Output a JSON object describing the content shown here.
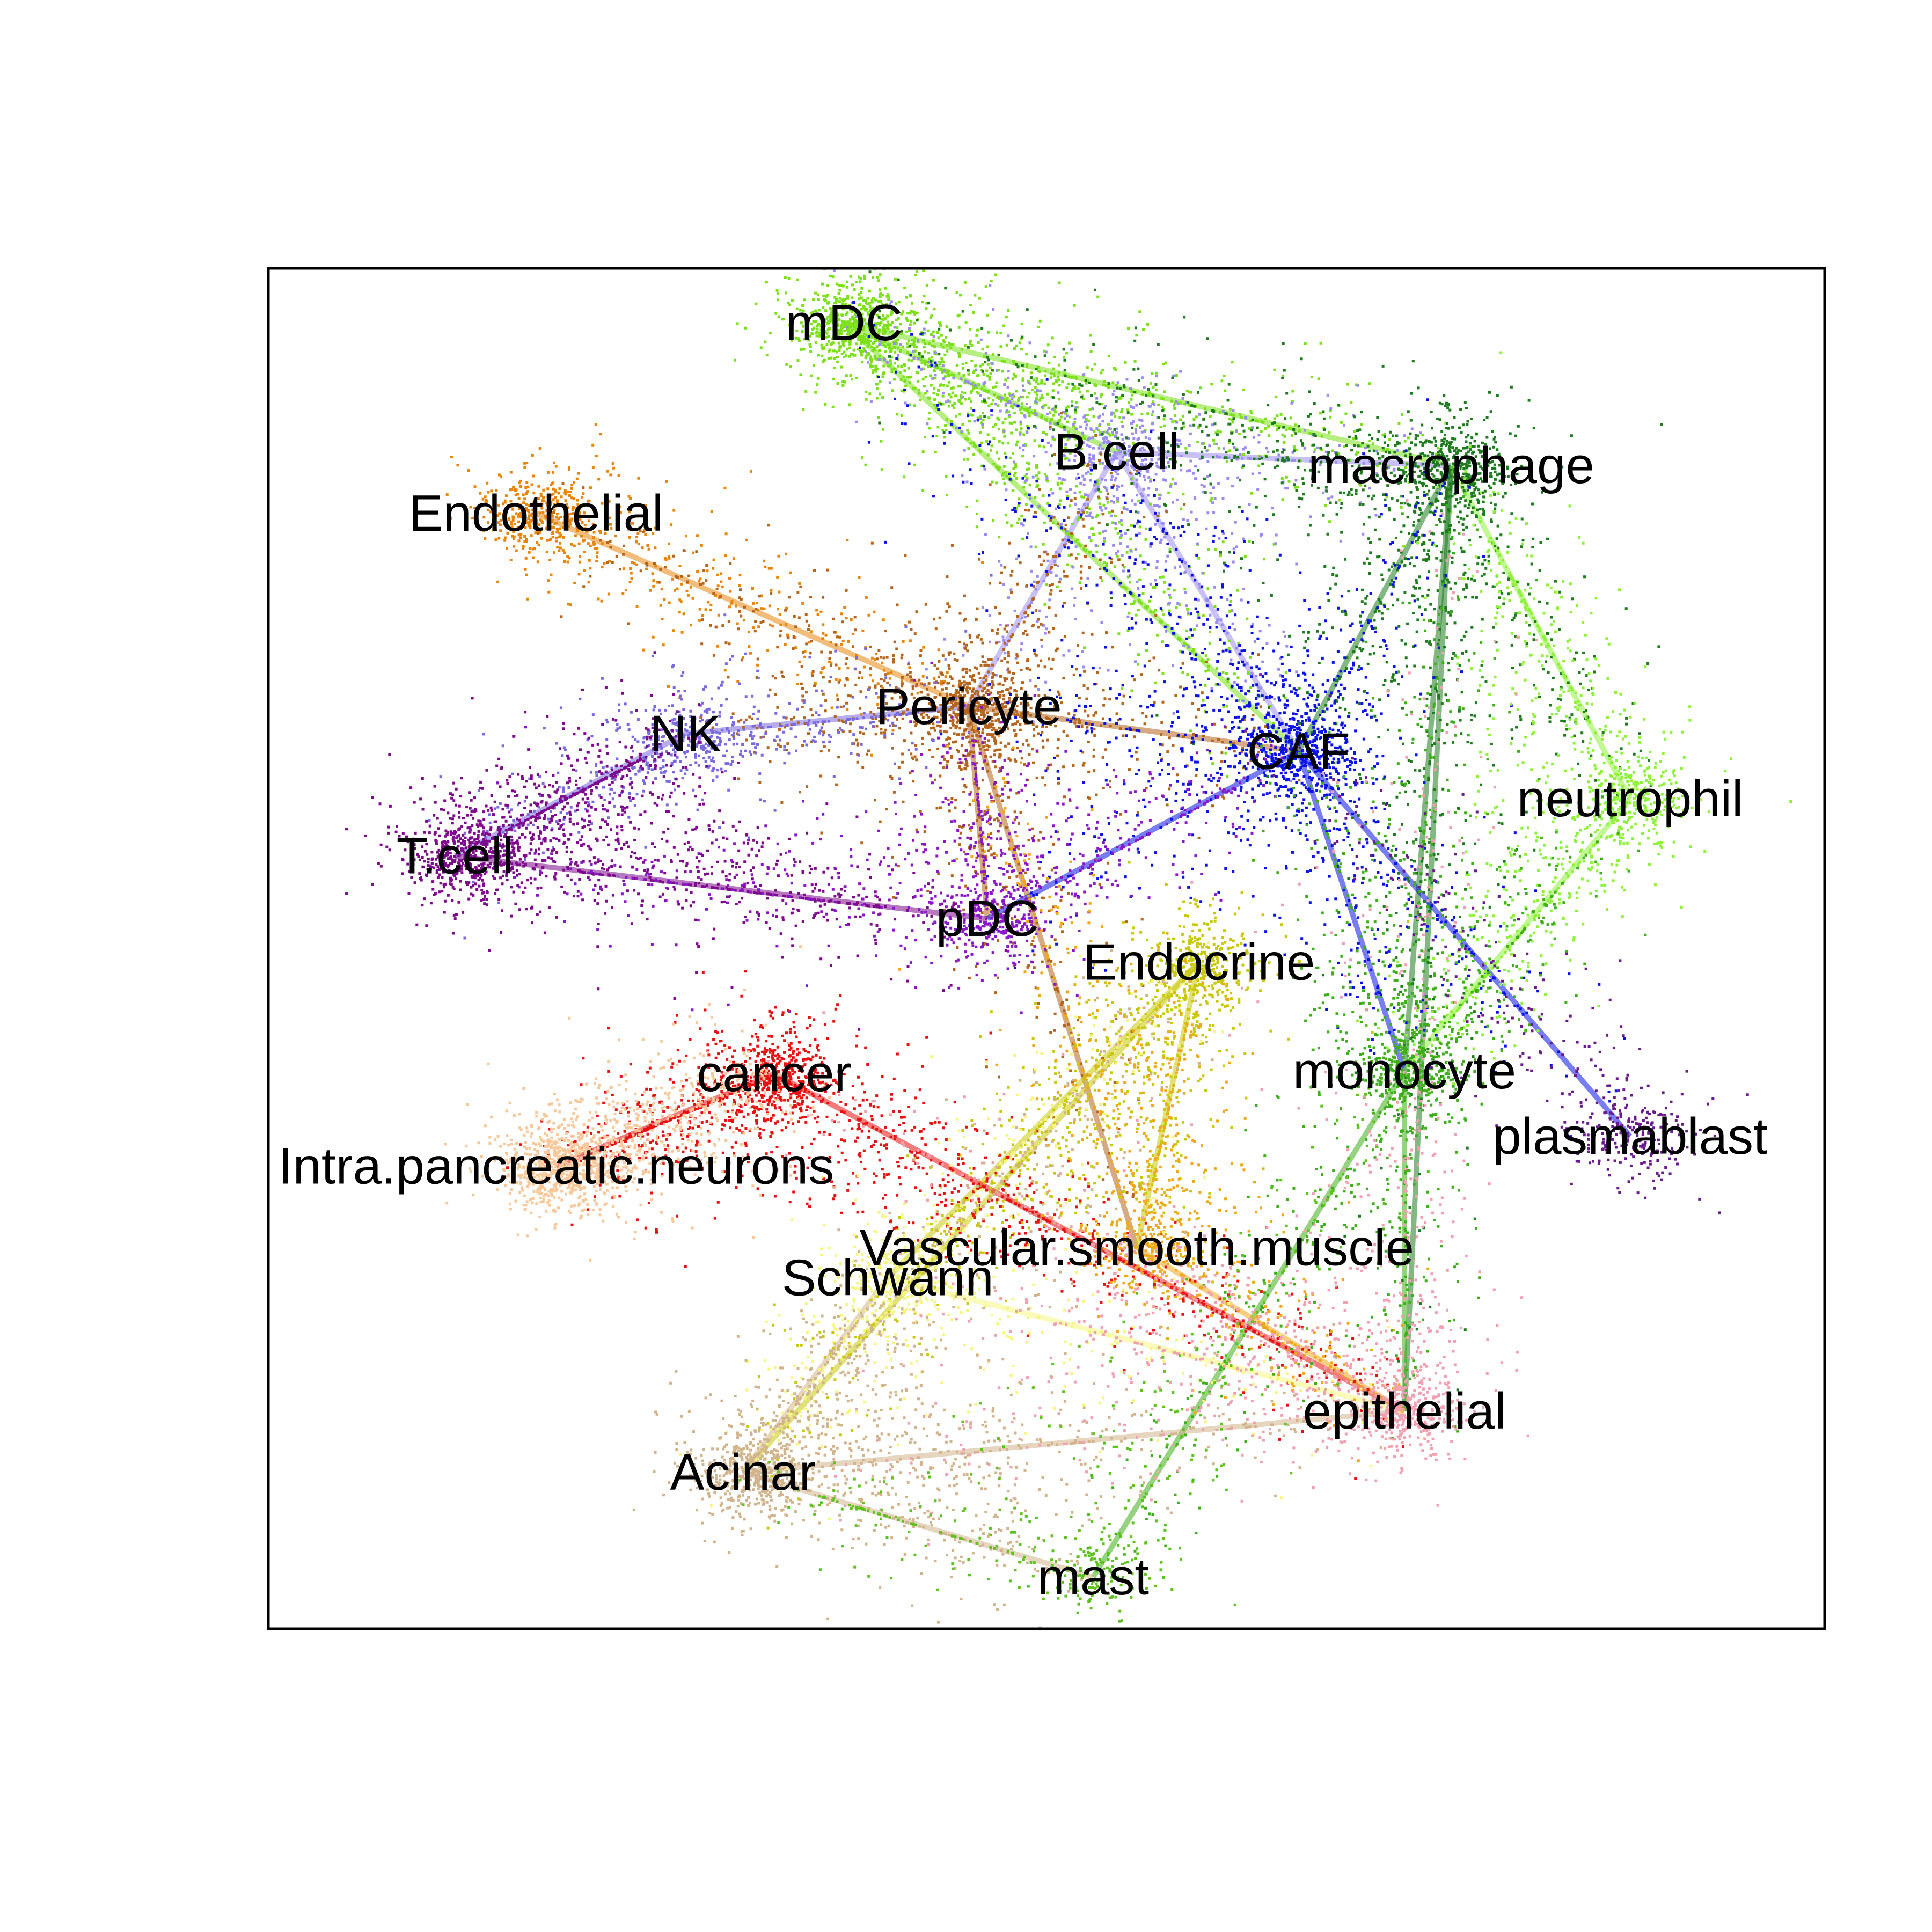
{
  "chart_data": {
    "type": "scatter",
    "title": "",
    "xlabel": "",
    "ylabel": "",
    "xlim": [
      0,
      1000
    ],
    "ylim": [
      0,
      1000
    ],
    "grid": false,
    "legend": "none",
    "clusters": [
      {
        "name": "mDC",
        "x": 370,
        "y": 960,
        "color": "#7CE01A",
        "n": 2600
      },
      {
        "name": "B.cell",
        "x": 545,
        "y": 865,
        "color": "#9A8CF0",
        "n": 900
      },
      {
        "name": "macrophage",
        "x": 760,
        "y": 855,
        "color": "#1E7B1E",
        "n": 2600
      },
      {
        "name": "Endothelial",
        "x": 172,
        "y": 820,
        "color": "#E8860C",
        "n": 700
      },
      {
        "name": "Pericyte",
        "x": 450,
        "y": 678,
        "color": "#B5651D",
        "n": 2200
      },
      {
        "name": "NK",
        "x": 268,
        "y": 658,
        "color": "#7A6AE0",
        "n": 700
      },
      {
        "name": "CAF",
        "x": 662,
        "y": 645,
        "color": "#0A12E8",
        "n": 2000
      },
      {
        "name": "T.cell",
        "x": 120,
        "y": 568,
        "color": "#7E0A8C",
        "n": 2400
      },
      {
        "name": "neutrophil",
        "x": 875,
        "y": 610,
        "color": "#8FF23A",
        "n": 1000
      },
      {
        "name": "pDC",
        "x": 462,
        "y": 522,
        "color": "#8A18C8",
        "n": 1000
      },
      {
        "name": "Endocrine",
        "x": 598,
        "y": 490,
        "color": "#C9C80A",
        "n": 1100
      },
      {
        "name": "monocyte",
        "x": 730,
        "y": 410,
        "color": "#3EAE1A",
        "n": 1300
      },
      {
        "name": "cancer",
        "x": 325,
        "y": 408,
        "color": "#E81010",
        "n": 1600
      },
      {
        "name": "plasmablast",
        "x": 875,
        "y": 362,
        "color": "#6A1A8C",
        "n": 400
      },
      {
        "name": "Intra.pancreatic.neurons",
        "x": 185,
        "y": 340,
        "color": "#F7C89A",
        "n": 1200
      },
      {
        "name": "Vascular.smooth.muscle",
        "x": 558,
        "y": 280,
        "color": "#F0A818",
        "n": 900
      },
      {
        "name": "Schwann",
        "x": 398,
        "y": 258,
        "color": "#F5F580",
        "n": 800
      },
      {
        "name": "epithelial",
        "x": 730,
        "y": 160,
        "color": "#F0A0B0",
        "n": 1400
      },
      {
        "name": "Acinar",
        "x": 305,
        "y": 115,
        "color": "#D2B48C",
        "n": 2400
      },
      {
        "name": "mast",
        "x": 530,
        "y": 38,
        "color": "#5CC21C",
        "n": 500
      }
    ],
    "edges": [
      [
        "mDC",
        "macrophage"
      ],
      [
        "mDC",
        "CAF"
      ],
      [
        "mDC",
        "B.cell"
      ],
      [
        "B.cell",
        "macrophage"
      ],
      [
        "B.cell",
        "CAF"
      ],
      [
        "B.cell",
        "Pericyte"
      ],
      [
        "macrophage",
        "CAF"
      ],
      [
        "macrophage",
        "monocyte"
      ],
      [
        "macrophage",
        "epithelial"
      ],
      [
        "Endothelial",
        "Pericyte"
      ],
      [
        "Pericyte",
        "CAF"
      ],
      [
        "Pericyte",
        "pDC"
      ],
      [
        "Pericyte",
        "Vascular.smooth.muscle"
      ],
      [
        "NK",
        "T.cell"
      ],
      [
        "NK",
        "Pericyte"
      ],
      [
        "CAF",
        "pDC"
      ],
      [
        "CAF",
        "plasmablast"
      ],
      [
        "CAF",
        "monocyte"
      ],
      [
        "neutrophil",
        "monocyte"
      ],
      [
        "neutrophil",
        "macrophage"
      ],
      [
        "monocyte",
        "epithelial"
      ],
      [
        "monocyte",
        "mast"
      ],
      [
        "Endocrine",
        "Acinar"
      ],
      [
        "Endocrine",
        "Schwann"
      ],
      [
        "Endocrine",
        "Vascular.smooth.muscle"
      ],
      [
        "cancer",
        "epithelial"
      ],
      [
        "cancer",
        "Intra.pancreatic.neurons"
      ],
      [
        "Acinar",
        "epithelial"
      ],
      [
        "Acinar",
        "Schwann"
      ],
      [
        "Acinar",
        "mast"
      ],
      [
        "Schwann",
        "epithelial"
      ],
      [
        "Vascular.smooth.muscle",
        "epithelial"
      ],
      [
        "T.cell",
        "pDC"
      ]
    ]
  },
  "labels": [
    {
      "name": "mDC",
      "text": "mDC"
    },
    {
      "name": "B.cell",
      "text": "B.cell"
    },
    {
      "name": "macrophage",
      "text": "macrophage"
    },
    {
      "name": "Endothelial",
      "text": "Endothelial"
    },
    {
      "name": "Pericyte",
      "text": "Pericyte"
    },
    {
      "name": "NK",
      "text": "NK"
    },
    {
      "name": "CAF",
      "text": "CAF"
    },
    {
      "name": "T.cell",
      "text": "T.cell"
    },
    {
      "name": "neutrophil",
      "text": "neutrophil"
    },
    {
      "name": "pDC",
      "text": "pDC"
    },
    {
      "name": "Endocrine",
      "text": "Endocrine"
    },
    {
      "name": "monocyte",
      "text": "monocyte"
    },
    {
      "name": "cancer",
      "text": "cancer"
    },
    {
      "name": "plasmablast",
      "text": "plasmablast"
    },
    {
      "name": "Intra.pancreatic.neurons",
      "text": "Intra.pancreatic.neurons"
    },
    {
      "name": "Vascular.smooth.muscle",
      "text": "Vascular.smooth.muscle"
    },
    {
      "name": "Schwann",
      "text": "Schwann"
    },
    {
      "name": "epithelial",
      "text": "epithelial"
    },
    {
      "name": "Acinar",
      "text": "Acinar"
    },
    {
      "name": "mast",
      "text": "mast"
    }
  ]
}
